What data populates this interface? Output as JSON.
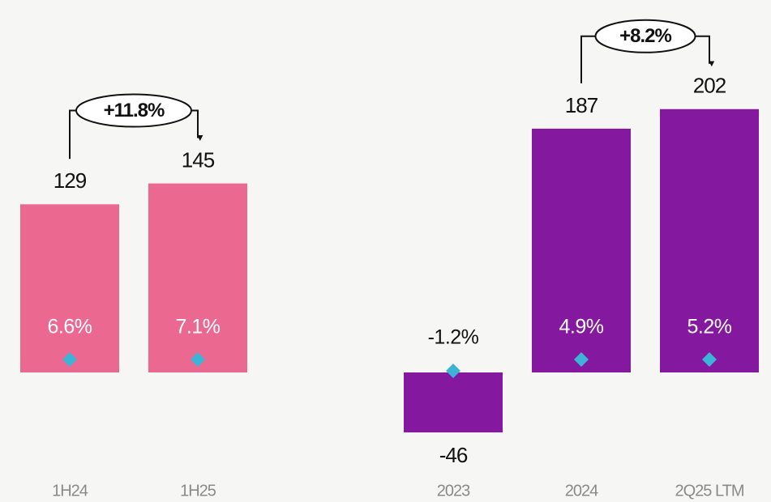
{
  "chart_data": [
    {
      "type": "bar",
      "categories": [
        "1H24",
        "1H25"
      ],
      "series": [
        {
          "color": "#eb6890",
          "values": [
            129,
            145
          ]
        },
        {
          "color": "#3db3d8",
          "values": [
            6.6,
            7.1
          ],
          "value_labels": [
            "6.6%",
            "7.1%"
          ]
        }
      ],
      "annotation": "+11.8%"
    },
    {
      "type": "bar",
      "categories": [
        "2023",
        "2024",
        "2Q25 LTM"
      ],
      "series": [
        {
          "color": "#84189e",
          "values": [
            -46,
            187,
            202
          ]
        },
        {
          "color": "#3db3d8",
          "values": [
            -1.2,
            4.9,
            5.2
          ],
          "value_labels": [
            "-1.2%",
            "4.9%",
            "5.2%"
          ]
        }
      ],
      "annotation": "+8.2%"
    }
  ]
}
